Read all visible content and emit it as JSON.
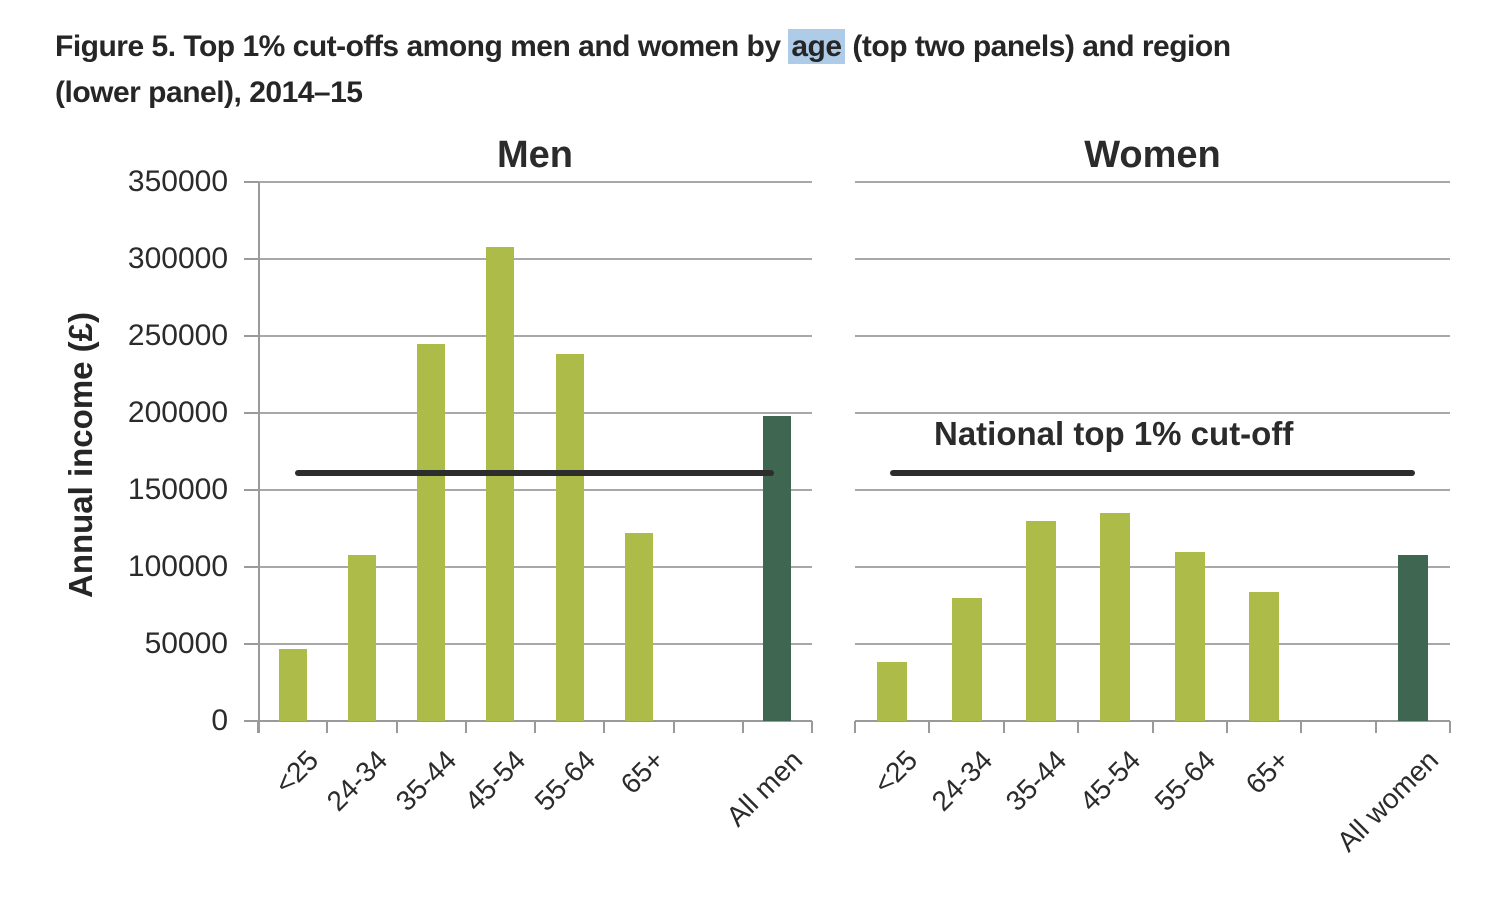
{
  "figure": {
    "title_line1_before": "Figure 5. Top 1% cut-offs among men and women by ",
    "title_highlight": "age",
    "title_line1_after": " (top two panels) and region",
    "title_line2": "(lower panel), 2014–15"
  },
  "colors": {
    "bar_olive": "#adbb49",
    "bar_dark_green": "#3f6651",
    "reference_line": "#2d2d2d",
    "gridline": "#a8a8a8",
    "axis": "#9a9a9a",
    "text": "#262626",
    "highlight_bg": "#aecbe8"
  },
  "chart_data": [
    {
      "type": "bar",
      "title": "Men",
      "ylabel": "Annual income (£)",
      "categories": [
        "<25",
        "24-34",
        "35-44",
        "45-54",
        "55-64",
        "65+",
        "",
        "All men"
      ],
      "values": [
        47000,
        108000,
        245000,
        308000,
        238000,
        122000,
        null,
        198000
      ],
      "highlight_category": "All men",
      "ylim": [
        0,
        350000
      ],
      "ytick_step": 50000,
      "yticks": [
        "350000",
        "300000",
        "250000",
        "200000",
        "150000",
        "100000",
        "50000",
        "0"
      ],
      "grid": true,
      "reference_line": {
        "value": 161000
      }
    },
    {
      "type": "bar",
      "title": "Women",
      "ylabel": "Annual income (£)",
      "categories": [
        "<25",
        "24-34",
        "35-44",
        "45-54",
        "55-64",
        "65+",
        "",
        "All women"
      ],
      "values": [
        38000,
        80000,
        130000,
        135000,
        110000,
        84000,
        null,
        108000
      ],
      "highlight_category": "All women",
      "ylim": [
        0,
        350000
      ],
      "ytick_step": 50000,
      "grid": true,
      "reference_line": {
        "value": 161000,
        "label": "National top 1% cut-off"
      }
    }
  ]
}
